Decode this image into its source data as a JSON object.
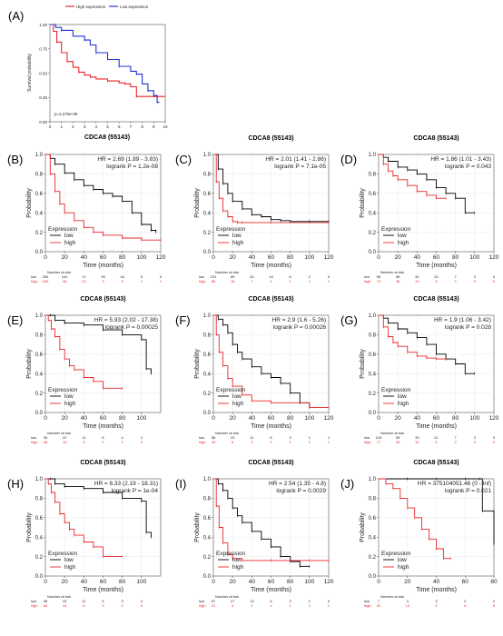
{
  "chart_data": [
    {
      "panel": "(A)",
      "type": "line",
      "title": "CDCA8 (55143)",
      "ylabel": "Survival probability",
      "legend": [
        "High expression",
        "Low expression"
      ],
      "pvalue": "p=2.270e-05",
      "xlim": [
        0,
        10
      ],
      "ylim": [
        0,
        1
      ],
      "xticks": [
        "0",
        "1",
        "2",
        "3",
        "4",
        "5",
        "6",
        "7",
        "8",
        "9",
        "10"
      ],
      "yticks": [
        "0.00",
        "0.25",
        "0.50",
        "0.75",
        "1.00"
      ],
      "series": [
        {
          "name": "High expression",
          "color": "#e8262a",
          "x": [
            0,
            0.3,
            0.6,
            1,
            1.5,
            2,
            2.5,
            3,
            3.5,
            4,
            5,
            6,
            6.5,
            7,
            7.5,
            8,
            9,
            10
          ],
          "y": [
            1,
            0.93,
            0.82,
            0.71,
            0.62,
            0.56,
            0.51,
            0.48,
            0.46,
            0.44,
            0.42,
            0.4,
            0.39,
            0.36,
            0.26,
            0.26,
            0.26,
            0.26
          ]
        },
        {
          "name": "Low expression",
          "color": "#2332d2",
          "x": [
            0,
            0.5,
            1,
            2,
            3,
            3.5,
            4,
            5,
            6,
            7,
            7.5,
            8,
            8.5,
            9,
            9.3,
            9.5
          ],
          "y": [
            1,
            0.97,
            0.94,
            0.88,
            0.84,
            0.79,
            0.71,
            0.64,
            0.57,
            0.52,
            0.49,
            0.39,
            0.32,
            0.27,
            0.2,
            0.2
          ]
        }
      ]
    },
    {
      "panel": "(B)",
      "type": "line",
      "title": "",
      "hr": "HR = 2.69 (1.89 - 3.83)",
      "logrank": "logrank P = 1.2e-08",
      "xlim": [
        0,
        120
      ],
      "xticks": [
        "0",
        "20",
        "40",
        "60",
        "80",
        "100",
        "120"
      ],
      "xlabel": "Time (months)",
      "ylabel": "Probability",
      "risk": {
        "low": [
          "264",
          "142",
          "71",
          "39",
          "16",
          "5",
          "0"
        ],
        "high": [
          "160",
          "48",
          "13",
          "3",
          "3",
          "1",
          "1"
        ]
      },
      "series": [
        {
          "name": "low",
          "x": [
            0,
            5,
            10,
            20,
            30,
            40,
            50,
            60,
            70,
            80,
            90,
            100,
            110,
            115
          ],
          "y": [
            1,
            0.96,
            0.9,
            0.81,
            0.74,
            0.68,
            0.64,
            0.6,
            0.57,
            0.52,
            0.4,
            0.28,
            0.22,
            0.2
          ]
        },
        {
          "name": "high",
          "x": [
            0,
            5,
            10,
            15,
            20,
            30,
            40,
            50,
            60,
            80,
            100,
            120
          ],
          "y": [
            1,
            0.8,
            0.62,
            0.49,
            0.4,
            0.32,
            0.25,
            0.2,
            0.17,
            0.14,
            0.12,
            0.12
          ]
        }
      ]
    },
    {
      "panel": "(C)",
      "type": "line",
      "title": "CDCA8 (55143)",
      "hr": "HR = 2.01 (1.41 - 2.86)",
      "logrank": "logrank P = 7.1e-05",
      "xlim": [
        0,
        120
      ],
      "xticks": [
        "0",
        "20",
        "40",
        "60",
        "80",
        "100",
        "120"
      ],
      "xlabel": "Time (months)",
      "ylabel": "Probability",
      "risk": {
        "low": [
          "231",
          "89",
          "40",
          "19",
          "6",
          "2",
          "0"
        ],
        "high": [
          "85",
          "16",
          "7",
          "1",
          "1",
          "1",
          "1"
        ]
      },
      "series": [
        {
          "name": "low",
          "x": [
            0,
            5,
            10,
            15,
            20,
            30,
            40,
            50,
            60,
            70,
            80,
            100,
            120
          ],
          "y": [
            1,
            0.85,
            0.7,
            0.6,
            0.52,
            0.44,
            0.38,
            0.36,
            0.33,
            0.32,
            0.31,
            0.31,
            0.31
          ]
        },
        {
          "name": "high",
          "x": [
            0,
            3,
            6,
            10,
            15,
            20,
            25,
            30,
            60,
            120
          ],
          "y": [
            1,
            0.72,
            0.55,
            0.42,
            0.36,
            0.31,
            0.3,
            0.3,
            0.3,
            0.3
          ]
        }
      ]
    },
    {
      "panel": "(D)",
      "type": "line",
      "title": "CDCA8 (55143)",
      "hr": "HR = 1.86 (1.01 - 3.43)",
      "logrank": "logrank P = 0.043",
      "xlim": [
        0,
        120
      ],
      "xticks": [
        "0",
        "20",
        "40",
        "60",
        "80",
        "100",
        "120"
      ],
      "xlabel": "Time (months)",
      "ylabel": "Probability",
      "risk": {
        "low": [
          "96",
          "55",
          "32",
          "20",
          "7",
          "2",
          "0"
        ],
        "high": [
          "74",
          "38",
          "19",
          "5",
          "2",
          "0",
          "0"
        ]
      },
      "series": [
        {
          "name": "low",
          "x": [
            0,
            5,
            10,
            20,
            30,
            40,
            50,
            60,
            70,
            80,
            90,
            100
          ],
          "y": [
            1,
            0.97,
            0.93,
            0.87,
            0.84,
            0.8,
            0.74,
            0.66,
            0.6,
            0.55,
            0.4,
            0.4
          ]
        },
        {
          "name": "high",
          "x": [
            0,
            5,
            10,
            15,
            20,
            30,
            40,
            50,
            60,
            70
          ],
          "y": [
            1,
            0.9,
            0.83,
            0.78,
            0.74,
            0.68,
            0.62,
            0.58,
            0.55,
            0.55
          ]
        }
      ]
    },
    {
      "panel": "(E)",
      "type": "line",
      "title": "CDCA8 (55143)",
      "hr": "HR = 5.93 (2.02 - 17.38)",
      "logrank": "logrank P = 0.00025",
      "xlim": [
        0,
        120
      ],
      "xticks": [
        "0",
        "20",
        "40",
        "60",
        "80",
        "100"
      ],
      "xlabel": "Time (months)",
      "ylabel": "Probability",
      "risk": {
        "low": [
          "35",
          "22",
          "11",
          "6",
          "4",
          "2"
        ],
        "high": [
          "48",
          "14",
          "5",
          "2",
          "2",
          "0"
        ]
      },
      "series": [
        {
          "name": "low",
          "x": [
            0,
            5,
            10,
            20,
            40,
            60,
            80,
            100,
            105,
            110
          ],
          "y": [
            1,
            1,
            0.95,
            0.92,
            0.9,
            0.85,
            0.8,
            0.75,
            0.45,
            0.4
          ]
        },
        {
          "name": "high",
          "x": [
            0,
            3,
            6,
            10,
            15,
            20,
            25,
            30,
            40,
            50,
            60,
            80
          ],
          "y": [
            1,
            0.95,
            0.86,
            0.78,
            0.65,
            0.55,
            0.48,
            0.44,
            0.36,
            0.32,
            0.25,
            0.25
          ]
        }
      ]
    },
    {
      "panel": "(F)",
      "type": "line",
      "title": "CDCA8 (55143)",
      "hr": "HR = 2.9 (1.6 - 5.26)",
      "logrank": "logrank P = 0.00026",
      "xlim": [
        0,
        120
      ],
      "xticks": [
        "0",
        "20",
        "40",
        "60",
        "80",
        "100",
        "120"
      ],
      "xlabel": "Time (months)",
      "ylabel": "Probability",
      "risk": {
        "low": [
          "58",
          "23",
          "11",
          "6",
          "3",
          "1",
          "1"
        ],
        "high": [
          "29",
          "6",
          "3",
          "1",
          "1",
          "1",
          "1"
        ]
      },
      "series": [
        {
          "name": "low",
          "x": [
            0,
            5,
            10,
            15,
            20,
            25,
            30,
            40,
            50,
            60,
            70,
            80,
            90,
            100
          ],
          "y": [
            1,
            0.96,
            0.9,
            0.82,
            0.7,
            0.62,
            0.55,
            0.47,
            0.4,
            0.36,
            0.3,
            0.2,
            0.1,
            0.05
          ]
        },
        {
          "name": "high",
          "x": [
            0,
            3,
            6,
            10,
            15,
            20,
            30,
            40,
            60,
            100,
            120
          ],
          "y": [
            1,
            0.8,
            0.62,
            0.48,
            0.35,
            0.27,
            0.18,
            0.12,
            0.1,
            0.05,
            0.05
          ]
        }
      ]
    },
    {
      "panel": "(G)",
      "type": "line",
      "title": "CDCA8 (55143)",
      "hr": "HR = 1.9 (1.06 - 3.42)",
      "logrank": "logrank P = 0.028",
      "xlim": [
        0,
        120
      ],
      "xticks": [
        "0",
        "20",
        "40",
        "60",
        "80",
        "100",
        "120"
      ],
      "xlabel": "Time (months)",
      "ylabel": "Probability",
      "risk": {
        "low": [
          "103",
          "59",
          "33",
          "21",
          "7",
          "2",
          "0"
        ],
        "high": [
          "77",
          "39",
          "19",
          "5",
          "2",
          "0",
          "0"
        ]
      },
      "series": [
        {
          "name": "low",
          "x": [
            0,
            5,
            10,
            20,
            30,
            40,
            50,
            60,
            70,
            80,
            90,
            100
          ],
          "y": [
            1,
            0.97,
            0.92,
            0.86,
            0.82,
            0.77,
            0.7,
            0.6,
            0.55,
            0.5,
            0.4,
            0.4
          ]
        },
        {
          "name": "high",
          "x": [
            0,
            5,
            10,
            15,
            20,
            30,
            40,
            50,
            60,
            70
          ],
          "y": [
            1,
            0.88,
            0.78,
            0.72,
            0.68,
            0.62,
            0.58,
            0.56,
            0.55,
            0.55
          ]
        }
      ]
    },
    {
      "panel": "(H)",
      "type": "line",
      "title": "CDCA8 (55143)",
      "hr": "HR = 6.33 (2.19 - 18.31)",
      "logrank": "logrank P = 1e-04",
      "xlim": [
        0,
        120
      ],
      "xticks": [
        "0",
        "20",
        "40",
        "60",
        "80",
        "100"
      ],
      "xlabel": "Time (months)",
      "ylabel": "Probability",
      "risk": {
        "low": [
          "36",
          "23",
          "11",
          "6",
          "3",
          "2"
        ],
        "high": [
          "54",
          "24",
          "6",
          "3",
          "2",
          "0"
        ]
      },
      "series": [
        {
          "name": "low",
          "x": [
            0,
            5,
            10,
            20,
            40,
            60,
            80,
            100,
            105,
            110
          ],
          "y": [
            1,
            1,
            0.95,
            0.92,
            0.9,
            0.86,
            0.8,
            0.77,
            0.45,
            0.4
          ]
        },
        {
          "name": "high",
          "x": [
            0,
            3,
            6,
            10,
            15,
            20,
            25,
            30,
            40,
            50,
            60,
            80
          ],
          "y": [
            1,
            0.95,
            0.86,
            0.76,
            0.64,
            0.55,
            0.48,
            0.42,
            0.35,
            0.3,
            0.2,
            0.2
          ]
        }
      ]
    },
    {
      "panel": "(I)",
      "type": "line",
      "title": "CDCA8 (55143)",
      "hr": "HR = 2.54 (1.35 - 4.8)",
      "logrank": "logrank P = 0.0029",
      "xlim": [
        0,
        120
      ],
      "xticks": [
        "0",
        "20",
        "40",
        "60",
        "80",
        "100",
        "120"
      ],
      "xlabel": "Time (months)",
      "ylabel": "Probability",
      "risk": {
        "low": [
          "57",
          "27",
          "13",
          "6",
          "3",
          "1",
          "0"
        ],
        "high": [
          "21",
          "4",
          "2",
          "1",
          "1",
          "1",
          "1"
        ]
      },
      "series": [
        {
          "name": "low",
          "x": [
            0,
            5,
            10,
            15,
            20,
            25,
            30,
            40,
            50,
            60,
            70,
            80,
            90,
            100
          ],
          "y": [
            1,
            0.95,
            0.88,
            0.8,
            0.7,
            0.62,
            0.55,
            0.46,
            0.38,
            0.3,
            0.2,
            0.15,
            0.1,
            0.1
          ]
        },
        {
          "name": "high",
          "x": [
            0,
            3,
            6,
            10,
            15,
            20,
            30,
            60,
            100,
            120
          ],
          "y": [
            1,
            0.72,
            0.5,
            0.34,
            0.22,
            0.18,
            0.16,
            0.16,
            0.16,
            0.16
          ]
        }
      ]
    },
    {
      "panel": "(J)",
      "type": "line",
      "title": "CDCA8 (55143)",
      "hr": "HR = 375104051.46 (0 - Inf)",
      "logrank": "logrank P = 0.021",
      "xlim": [
        0,
        80
      ],
      "xticks": [
        "0",
        "20",
        "40",
        "60",
        "80"
      ],
      "xlabel": "Time (months)",
      "ylabel": "Probability",
      "risk": {
        "low": [
          "7",
          "4",
          "3",
          "2",
          "2"
        ],
        "high": [
          "22",
          "13",
          "2",
          "0",
          "0"
        ]
      },
      "series": [
        {
          "name": "low",
          "x": [
            0,
            20,
            40,
            60,
            70,
            72,
            80
          ],
          "y": [
            1,
            1,
            1,
            1,
            1,
            0.67,
            0.33
          ]
        },
        {
          "name": "high",
          "x": [
            0,
            5,
            10,
            15,
            20,
            25,
            30,
            35,
            40,
            45,
            50
          ],
          "y": [
            1,
            0.95,
            0.9,
            0.8,
            0.7,
            0.6,
            0.48,
            0.38,
            0.28,
            0.18,
            0.18
          ]
        }
      ]
    }
  ],
  "common": {
    "yticks": [
      "0.0",
      "0.2",
      "0.4",
      "0.6",
      "0.8",
      "1.0"
    ],
    "expression_label": "Expression",
    "risk_label": "Number at risk",
    "low_color": "#000000",
    "high_color": "#e8262a"
  }
}
